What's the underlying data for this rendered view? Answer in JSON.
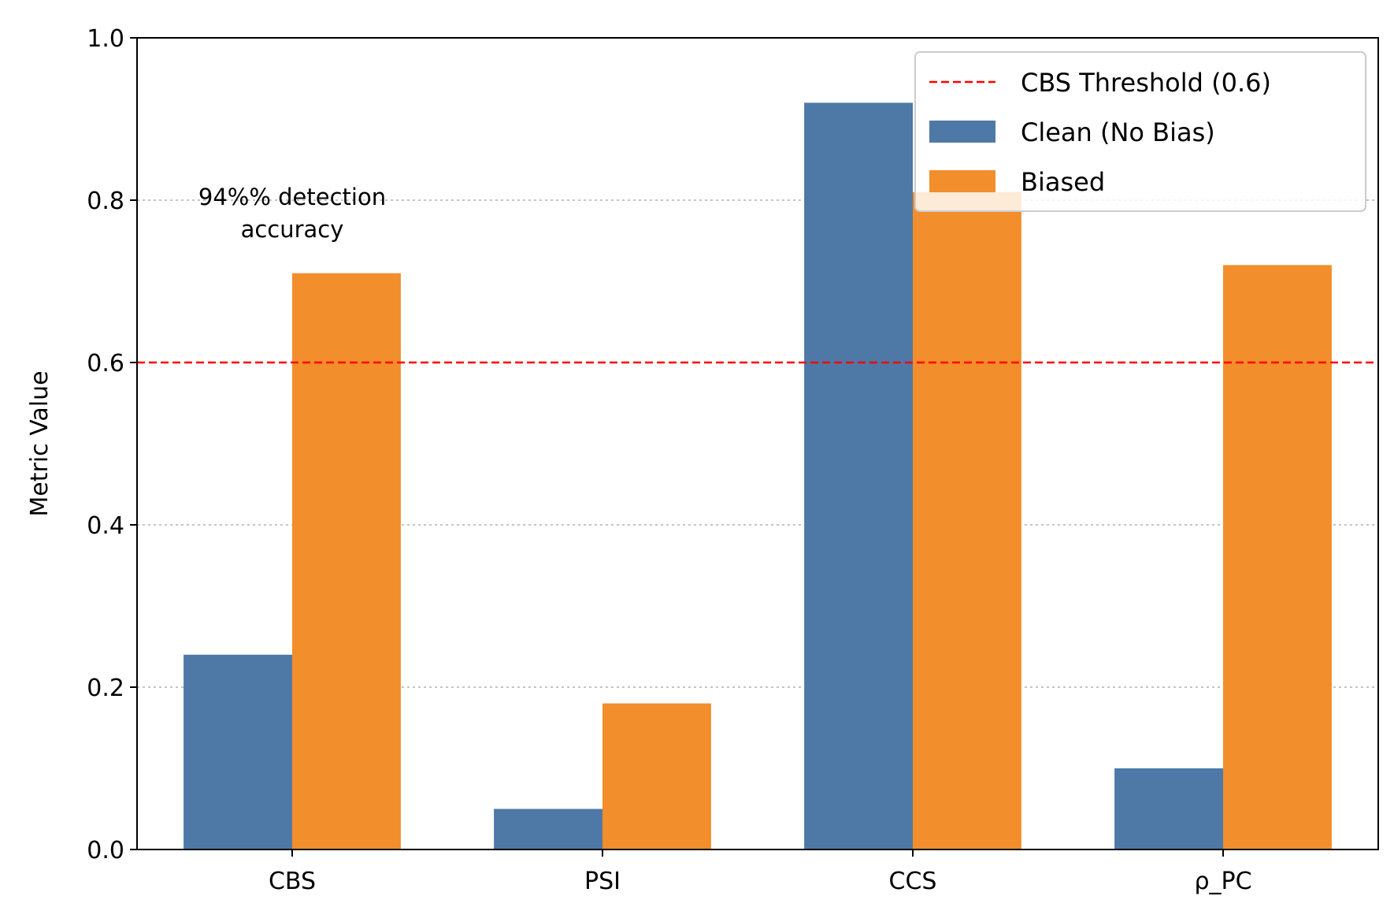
{
  "chart_data": {
    "type": "bar",
    "categories": [
      "CBS",
      "PSI",
      "CCS",
      "ρ_PC"
    ],
    "series": [
      {
        "name": "Clean (No Bias)",
        "values": [
          0.24,
          0.05,
          0.92,
          0.1
        ],
        "color": "#4e79a7"
      },
      {
        "name": "Biased",
        "values": [
          0.71,
          0.18,
          0.81,
          0.72
        ],
        "color": "#f28e2b"
      }
    ],
    "ylabel": "Metric Value",
    "xlabel": "",
    "ylim": [
      0,
      1.0
    ],
    "yticks": [
      "0.0",
      "0.2",
      "0.4",
      "0.6",
      "0.8",
      "1.0"
    ],
    "grid": "horizontal dotted at 0.2, 0.4, 0.8",
    "threshold": {
      "label": "CBS Threshold (0.6)",
      "value": 0.6,
      "color": "#ff0000",
      "style": "dashed"
    },
    "annotation": {
      "lines": [
        "94%% detection",
        "accuracy"
      ],
      "category": "CBS",
      "value": 0.8
    },
    "legend_placement": "top-right"
  }
}
